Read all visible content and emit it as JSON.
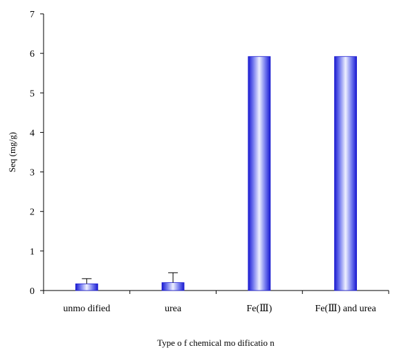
{
  "chart_data": {
    "type": "bar",
    "categories": [
      "unmo dified",
      "urea",
      "Fe(Ⅲ)",
      "Fe(Ⅲ) and urea"
    ],
    "values": [
      0.17,
      0.2,
      5.92,
      5.92
    ],
    "error_upper": [
      0.13,
      0.25,
      0.0,
      0.0
    ],
    "xlabel": "Type o f chemical mo dificatio n",
    "ylabel": "Seq (mg/g)",
    "ylim": [
      0,
      7
    ],
    "yticks": [
      0,
      1,
      2,
      3,
      4,
      5,
      6,
      7
    ],
    "grid": false,
    "legend": "none",
    "bar_colors": {
      "edge": "#1a1ad0",
      "center": "#eef0ff",
      "mid": "#7f86f0"
    }
  }
}
